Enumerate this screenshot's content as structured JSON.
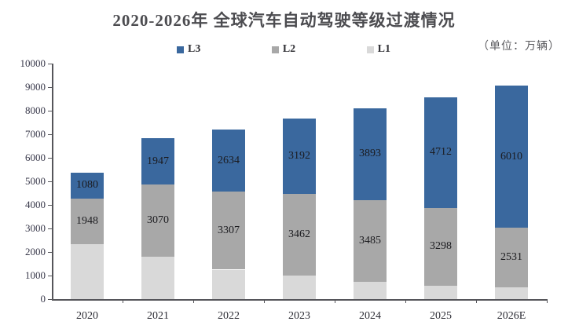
{
  "chart_data": {
    "type": "bar",
    "stacked": true,
    "title": "2020-2026年 全球汽车自动驾驶等级过渡情况",
    "unit_note": "（单位：万辆）",
    "categories": [
      "2020",
      "2021",
      "2022",
      "2023",
      "2024",
      "2025",
      "2026E"
    ],
    "series": [
      {
        "name": "L3",
        "color": "#3A689E",
        "labels_shown": true,
        "values": [
          1080,
          1947,
          2634,
          3192,
          3893,
          4712,
          6010
        ]
      },
      {
        "name": "L2",
        "color": "#A8A8A8",
        "labels_shown": true,
        "values": [
          1948,
          3070,
          3307,
          3462,
          3485,
          3298,
          2531
        ]
      },
      {
        "name": "L1",
        "color": "#D9D9D9",
        "labels_shown": false,
        "estimated": true,
        "values": [
          2330,
          1800,
          1250,
          1010,
          720,
          570,
          510
        ]
      }
    ],
    "stack_order_bottom_to_top": [
      "L1",
      "L2",
      "L3"
    ],
    "y_axis": {
      "min": 0,
      "max": 10000,
      "tick_interval": 1000,
      "tick_labels": [
        "0",
        "1000",
        "2000",
        "3000",
        "4000",
        "5000",
        "6000",
        "7000",
        "8000",
        "9000",
        "10000"
      ]
    },
    "legend_position": "top",
    "grid": false
  }
}
